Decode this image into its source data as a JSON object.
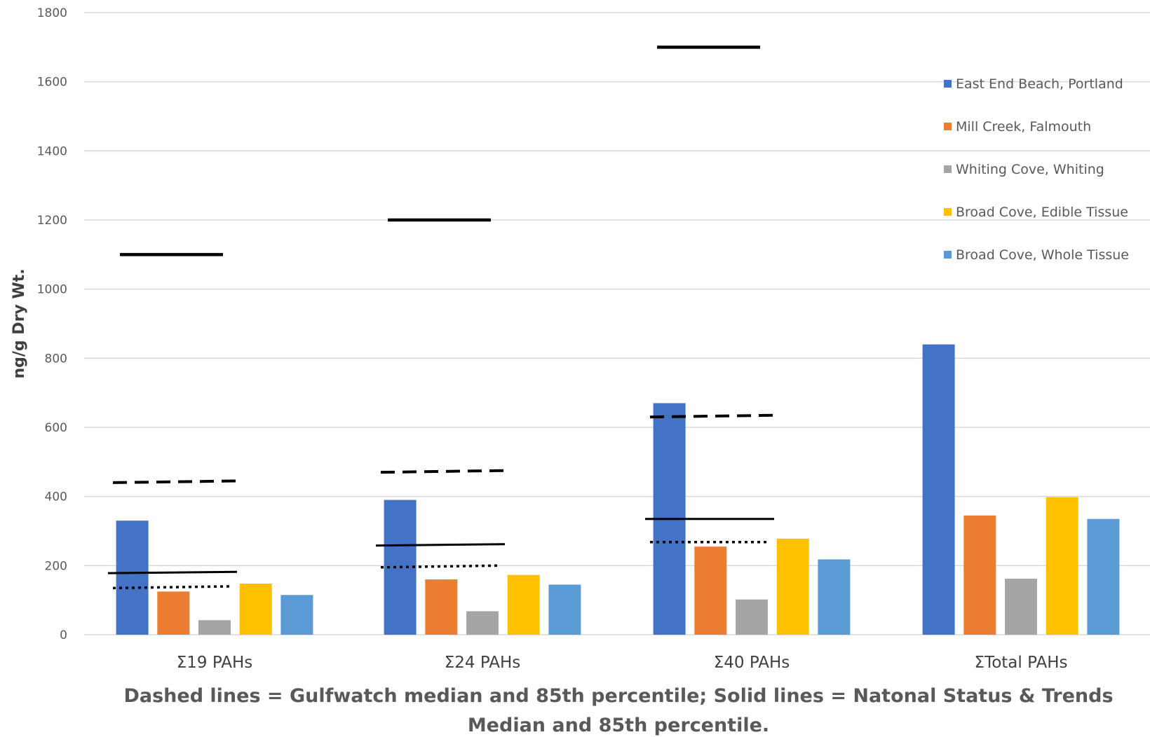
{
  "chart_data": {
    "type": "bar",
    "title": "",
    "ylabel": "ng/g Dry Wt.",
    "xlabel": "Dashed lines = Gulfwatch median and 85th percentile; Solid lines = Natonal Status & Trends Median and 85th percentile.",
    "xlabel_lines": [
      "Dashed lines = Gulfwatch median and 85th percentile; Solid lines = Natonal Status & Trends",
      "Median and 85th percentile."
    ],
    "ylim": [
      0,
      1800
    ],
    "yticks": [
      0,
      200,
      400,
      600,
      800,
      1000,
      1200,
      1400,
      1600,
      1800
    ],
    "grid": true,
    "legend_position": "top-right",
    "categories": [
      "Σ19 PAHs",
      "Σ24 PAHs",
      "Σ40 PAHs",
      "ΣTotal PAHs"
    ],
    "series": [
      {
        "name": "East End Beach, Portland",
        "color": "#4472C4",
        "values": [
          330,
          390,
          670,
          840
        ]
      },
      {
        "name": "Mill Creek, Falmouth",
        "color": "#ED7D31",
        "values": [
          125,
          160,
          255,
          345
        ]
      },
      {
        "name": "Whiting Cove, Whiting",
        "color": "#A5A5A5",
        "values": [
          42,
          68,
          102,
          162
        ]
      },
      {
        "name": "Broad Cove, Edible Tissue",
        "color": "#FFC000",
        "values": [
          148,
          173,
          278,
          398
        ]
      },
      {
        "name": "Broad Cove, Whole Tissue",
        "color": "#5B9BD5",
        "values": [
          115,
          145,
          218,
          335
        ]
      }
    ],
    "reference_lines": [
      {
        "category": 0,
        "style": "dotted",
        "values": [
          135,
          140
        ]
      },
      {
        "category": 0,
        "style": "dashed",
        "values": [
          440,
          445
        ]
      },
      {
        "category": 0,
        "style": "solid",
        "values": [
          178,
          182
        ]
      },
      {
        "category": 0,
        "style": "solid-thick",
        "values": [
          1100,
          1100
        ]
      },
      {
        "category": 1,
        "style": "dotted",
        "values": [
          195,
          200
        ]
      },
      {
        "category": 1,
        "style": "dashed",
        "values": [
          470,
          475
        ]
      },
      {
        "category": 1,
        "style": "solid",
        "values": [
          258,
          262
        ]
      },
      {
        "category": 1,
        "style": "solid-thick",
        "values": [
          1200,
          1200
        ]
      },
      {
        "category": 2,
        "style": "dotted",
        "values": [
          268,
          268
        ]
      },
      {
        "category": 2,
        "style": "dashed",
        "values": [
          630,
          635
        ]
      },
      {
        "category": 2,
        "style": "solid",
        "values": [
          335,
          335
        ]
      },
      {
        "category": 2,
        "style": "solid-thick",
        "values": [
          1700,
          1700
        ]
      }
    ]
  }
}
